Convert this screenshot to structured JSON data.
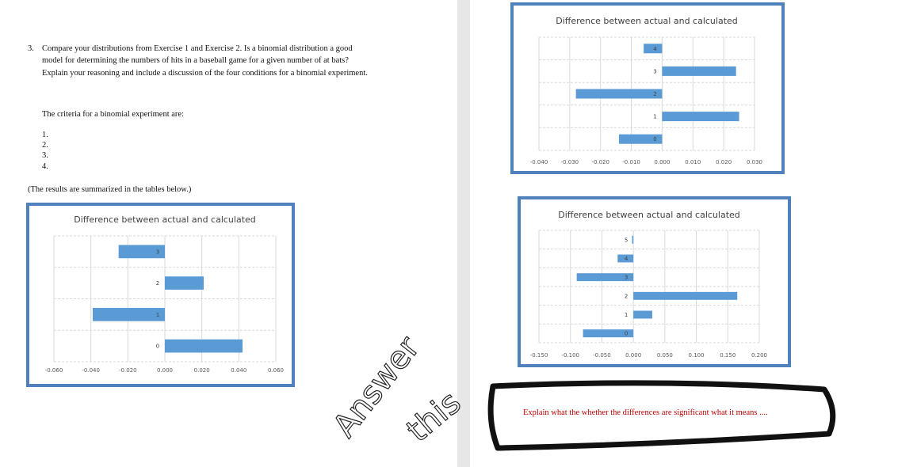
{
  "document": {
    "question_number": "3.",
    "question_lines": [
      "Compare your distributions from Exercise 1 and Exercise 2.  Is a binomial distribution a good",
      "model for determining the numbers of hits in a baseball game for a given number of at bats?",
      "Explain your reasoning and include a discussion of the four conditions for a binomial experiment."
    ],
    "criteria_heading": "The criteria for a binomial experiment are:",
    "criteria_items": [
      "1.",
      "2.",
      "3.",
      "4."
    ],
    "summary_note": "(The results are summarized in the tables below.)",
    "instruction": "Explain what the whether the differences are significant what it means ....",
    "handwriting": [
      "Answer",
      "this"
    ]
  },
  "chart_data": [
    {
      "type": "bar",
      "orientation": "horizontal",
      "title": "Difference between actual and calculated",
      "categories": [
        "0",
        "1",
        "2",
        "3"
      ],
      "values": [
        0.042,
        -0.039,
        0.021,
        -0.025
      ],
      "color": "#5b9bd5",
      "xlim": [
        -0.06,
        0.06
      ],
      "xticks": [
        {
          "value": -0.06,
          "label": "-0.060"
        },
        {
          "value": -0.04,
          "label": "-0.040"
        },
        {
          "value": -0.02,
          "label": "-0.020"
        },
        {
          "value": 0,
          "label": "0.000"
        },
        {
          "value": 0.02,
          "label": "0.020"
        },
        {
          "value": 0.04,
          "label": "0.040"
        },
        {
          "value": 0.06,
          "label": "0.060"
        }
      ],
      "grid": true
    },
    {
      "type": "bar",
      "orientation": "horizontal",
      "title": "Difference between actual and calculated",
      "categories": [
        "0",
        "1",
        "2",
        "3",
        "4"
      ],
      "values": [
        -0.014,
        0.025,
        -0.028,
        0.024,
        -0.006
      ],
      "color": "#5b9bd5",
      "xlim": [
        -0.04,
        0.03
      ],
      "xticks": [
        {
          "value": -0.04,
          "label": "-0.040"
        },
        {
          "value": -0.03,
          "label": "-0.030"
        },
        {
          "value": -0.02,
          "label": "-0.020"
        },
        {
          "value": -0.01,
          "label": "-0.010"
        },
        {
          "value": 0,
          "label": "0.000"
        },
        {
          "value": 0.01,
          "label": "0.010"
        },
        {
          "value": 0.02,
          "label": "0.020"
        },
        {
          "value": 0.03,
          "label": "0.030"
        }
      ],
      "grid": true
    },
    {
      "type": "bar",
      "orientation": "horizontal",
      "title": "Difference between actual and calculated",
      "categories": [
        "0",
        "1",
        "2",
        "3",
        "4",
        "5"
      ],
      "values": [
        -0.08,
        0.03,
        0.165,
        -0.09,
        -0.025,
        -0.002
      ],
      "color": "#5b9bd5",
      "xlim": [
        -0.15,
        0.2
      ],
      "xticks": [
        {
          "value": -0.15,
          "label": "-0.150"
        },
        {
          "value": -0.1,
          "label": "-0.100"
        },
        {
          "value": -0.05,
          "label": "-0.050"
        },
        {
          "value": 0,
          "label": "0.000"
        },
        {
          "value": 0.05,
          "label": "0.050"
        },
        {
          "value": 0.1,
          "label": "0.100"
        },
        {
          "value": 0.15,
          "label": "0.150"
        },
        {
          "value": 0.2,
          "label": "0.200"
        }
      ],
      "grid": true
    }
  ]
}
